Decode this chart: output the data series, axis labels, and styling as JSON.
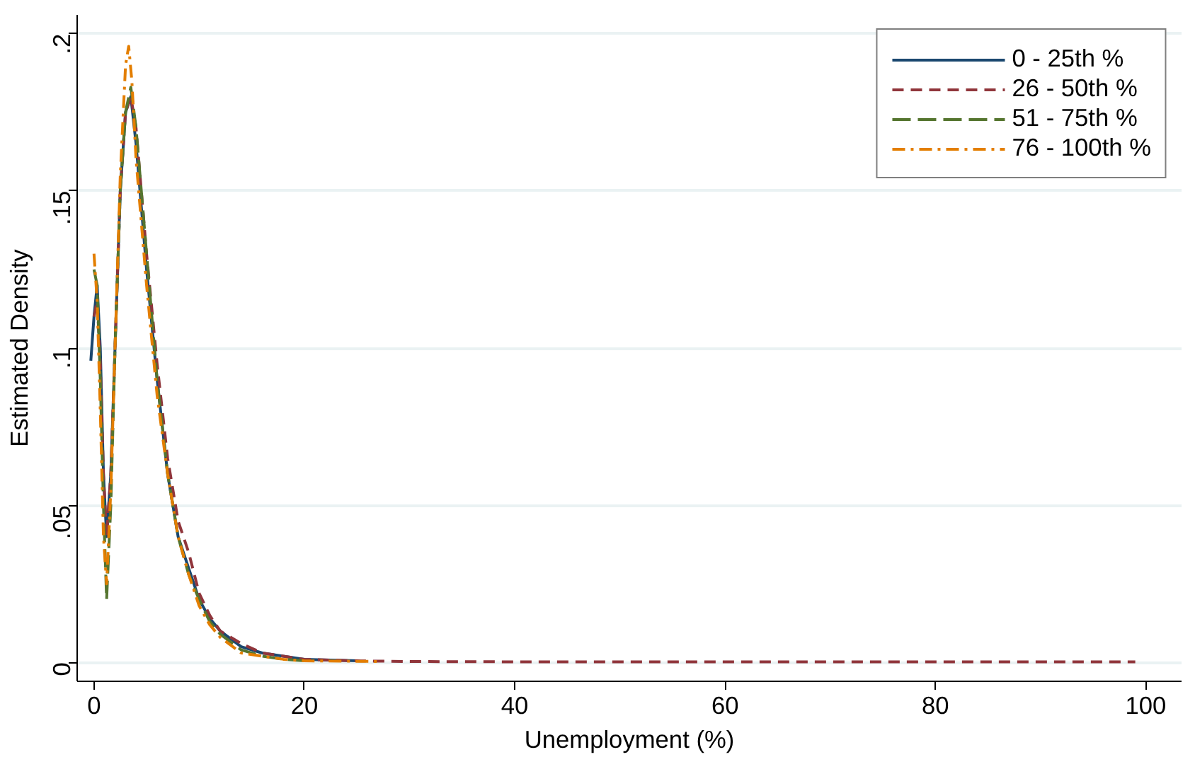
{
  "chart_data": {
    "type": "line",
    "xlabel": "Unemployment (%)",
    "ylabel": "Estimated Density",
    "xlim": [
      -1.6,
      103.4
    ],
    "ylim": [
      -0.006,
      0.206
    ],
    "xticks": [
      0,
      20,
      40,
      60,
      80,
      100
    ],
    "yticks": [
      {
        "value": 0,
        "label": "0"
      },
      {
        "value": 0.05,
        "label": ".05"
      },
      {
        "value": 0.1,
        "label": ".1"
      },
      {
        "value": 0.15,
        "label": ".15"
      },
      {
        "value": 0.2,
        "label": ".2"
      }
    ],
    "grid": "y",
    "legend": "top right",
    "series": [
      {
        "name": "0 - 25th %",
        "color": "#1a476f",
        "line_style": "solid",
        "x": [
          -0.3,
          0,
          0.3,
          0.6,
          0.9,
          1.2,
          1.6,
          2,
          2.5,
          3,
          3.5,
          4,
          4.5,
          5,
          6,
          7,
          8,
          9,
          10,
          11,
          12,
          14,
          16,
          18,
          20,
          25
        ],
        "values": [
          0.096,
          0.11,
          0.12,
          0.1,
          0.06,
          0.04,
          0.06,
          0.1,
          0.15,
          0.175,
          0.18,
          0.165,
          0.145,
          0.125,
          0.09,
          0.06,
          0.04,
          0.03,
          0.02,
          0.014,
          0.01,
          0.005,
          0.003,
          0.002,
          0.001,
          0.0005
        ]
      },
      {
        "name": "26 - 50th %",
        "color": "#90353b",
        "line_style": "dashed",
        "x": [
          0,
          0.3,
          0.6,
          0.9,
          1.2,
          1.6,
          2,
          2.5,
          3,
          3.5,
          4,
          4.5,
          5,
          6,
          7,
          8,
          9,
          10,
          11,
          12,
          14,
          16,
          18,
          20,
          25,
          30,
          40,
          60,
          80,
          99
        ],
        "values": [
          0.11,
          0.115,
          0.095,
          0.06,
          0.04,
          0.06,
          0.1,
          0.15,
          0.175,
          0.18,
          0.17,
          0.15,
          0.13,
          0.095,
          0.065,
          0.045,
          0.035,
          0.022,
          0.015,
          0.01,
          0.006,
          0.003,
          0.002,
          0.001,
          0.0005,
          0.0003,
          0.0002,
          0.0002,
          0.0002,
          0.0002
        ]
      },
      {
        "name": "51 - 75th %",
        "color": "#55752f",
        "line_style": "longdash",
        "x": [
          0,
          0.3,
          0.6,
          0.9,
          1.2,
          1.6,
          2,
          2.5,
          3,
          3.5,
          4,
          4.5,
          5,
          6,
          7,
          8,
          9,
          10,
          11,
          12,
          14,
          16,
          18,
          20
        ],
        "values": [
          0.125,
          0.12,
          0.09,
          0.05,
          0.02,
          0.05,
          0.1,
          0.15,
          0.175,
          0.183,
          0.17,
          0.15,
          0.13,
          0.09,
          0.06,
          0.04,
          0.028,
          0.02,
          0.013,
          0.009,
          0.004,
          0.002,
          0.001,
          0.0005
        ]
      },
      {
        "name": "76 - 100th %",
        "color": "#e37e00",
        "line_style": "dashdot",
        "x": [
          0,
          0.3,
          0.6,
          0.9,
          1.2,
          1.6,
          2,
          2.5,
          3,
          3.3,
          3.6,
          4,
          4.5,
          5,
          6,
          7,
          8,
          9,
          10,
          11,
          12,
          14,
          16,
          18,
          20,
          24,
          27
        ],
        "values": [
          0.13,
          0.115,
          0.08,
          0.04,
          0.025,
          0.055,
          0.1,
          0.155,
          0.19,
          0.196,
          0.185,
          0.16,
          0.14,
          0.12,
          0.085,
          0.06,
          0.04,
          0.028,
          0.018,
          0.012,
          0.008,
          0.003,
          0.002,
          0.001,
          0.0005,
          0.0004,
          0.0003
        ]
      }
    ]
  }
}
